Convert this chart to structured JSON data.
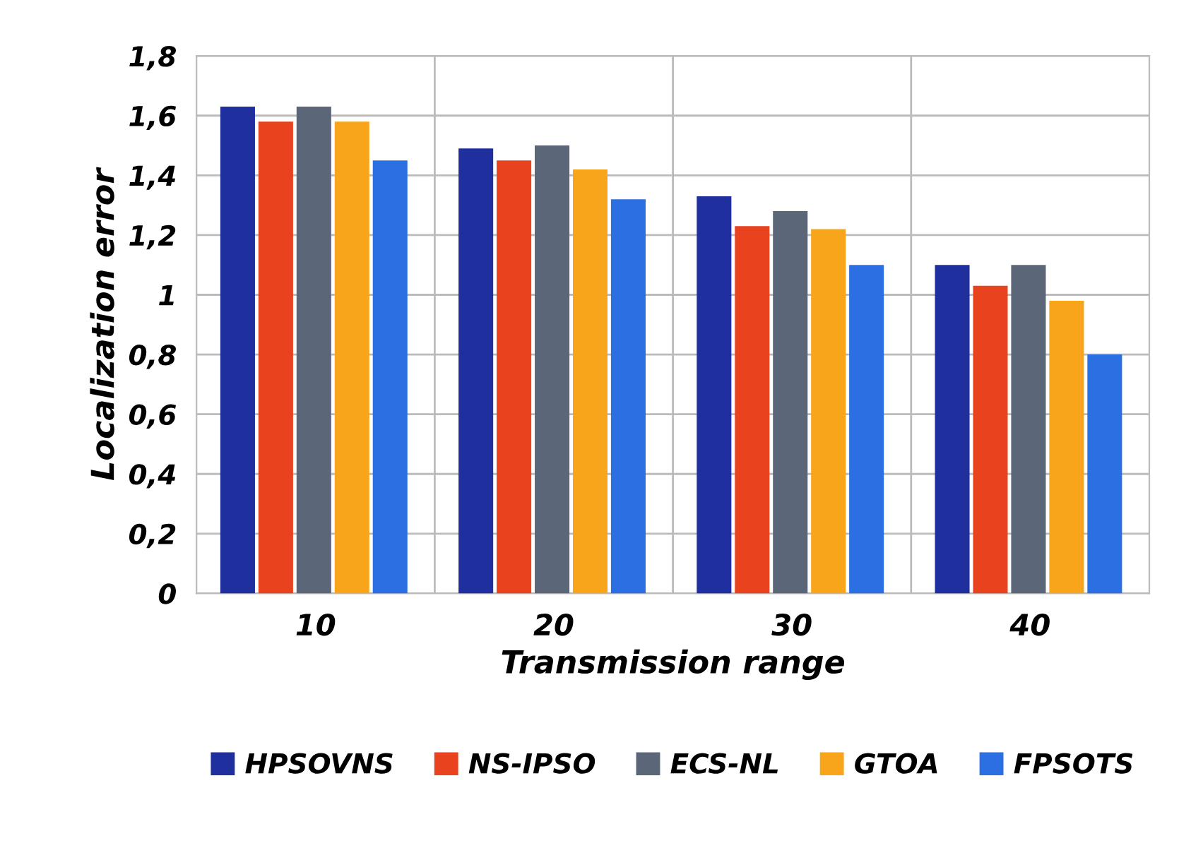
{
  "chart_data": {
    "type": "bar",
    "xlabel": "Transmission range",
    "ylabel": "Localization error",
    "categories": [
      "10",
      "20",
      "30",
      "40"
    ],
    "series": [
      {
        "name": "HPSOVNS",
        "color": "#1f2f9e",
        "values": [
          1.63,
          1.49,
          1.33,
          1.1
        ]
      },
      {
        "name": "NS-IPSO",
        "color": "#e8431e",
        "values": [
          1.58,
          1.45,
          1.23,
          1.03
        ]
      },
      {
        "name": "ECS-NL",
        "color": "#5c6679",
        "values": [
          1.63,
          1.5,
          1.28,
          1.1
        ]
      },
      {
        "name": "GTOA",
        "color": "#f9a51c",
        "values": [
          1.58,
          1.42,
          1.22,
          0.98
        ]
      },
      {
        "name": "FPSOTS",
        "color": "#2b6fe2",
        "values": [
          1.45,
          1.32,
          1.1,
          0.8
        ]
      }
    ],
    "ylim": [
      0,
      1.8
    ],
    "yticks": [
      0,
      {
        "value": 0.2,
        "label": "0,2"
      },
      {
        "value": 0.4,
        "label": "0,4"
      },
      {
        "value": 0.6,
        "label": "0,6"
      },
      {
        "value": 0.8,
        "label": "0,8"
      },
      1,
      {
        "value": 1.2,
        "label": "1,2"
      },
      {
        "value": 1.4,
        "label": "1,4"
      },
      {
        "value": 1.6,
        "label": "1,6"
      },
      {
        "value": 1.8,
        "label": "1,8"
      }
    ],
    "grid": true,
    "legend": "bottom"
  }
}
